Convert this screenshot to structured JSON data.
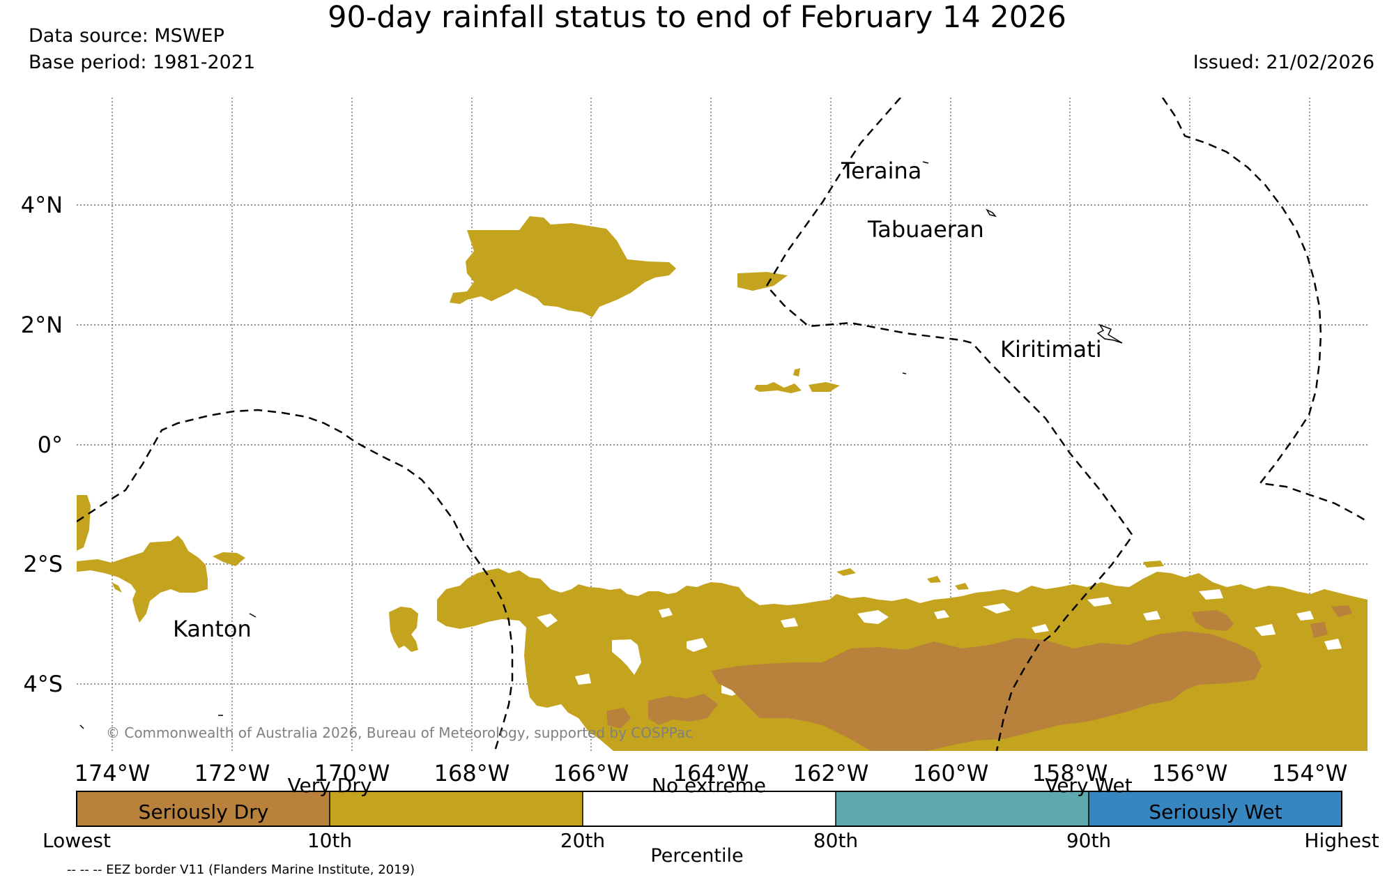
{
  "header": {
    "title": "90-day rainfall status to end of February 14 2026",
    "data_source": "Data source: MSWEP",
    "base_period": "Base period: 1981-2021",
    "issued": "Issued: 21/02/2026"
  },
  "map": {
    "lat_labels": [
      "4°N",
      "2°N",
      "0°",
      "2°S",
      "4°S"
    ],
    "lon_labels": [
      "174°W",
      "172°W",
      "170°W",
      "168°W",
      "166°W",
      "164°W",
      "162°W",
      "160°W",
      "158°W",
      "156°W",
      "154°W"
    ],
    "places": {
      "teraina": "Teraina",
      "tabuaeran": "Tabuaeran",
      "kiritimati": "Kiritimati",
      "kanton": "Kanton"
    },
    "copyright": "© Commonwealth of Australia 2026, Bureau of Meteorology, supported by COSPPac",
    "colors": {
      "very_dry": "#C4A41F",
      "seriously_dry": "#B8813C",
      "no_extreme": "#FFFFFF",
      "very_wet": "#5DA9AE",
      "seriously_wet": "#3886BF"
    }
  },
  "legend": {
    "categories": {
      "seriously_dry": "Seriously Dry",
      "very_dry": "Very Dry",
      "no_extreme": "No extreme",
      "very_wet": "Very Wet",
      "seriously_wet": "Seriously Wet"
    },
    "ticks": [
      "Lowest",
      "10th",
      "20th",
      "80th",
      "90th",
      "Highest"
    ],
    "axis_label": "Percentile",
    "eez_note": "-- -- -- EEZ border V11 (Flanders Marine Institute, 2019)"
  }
}
